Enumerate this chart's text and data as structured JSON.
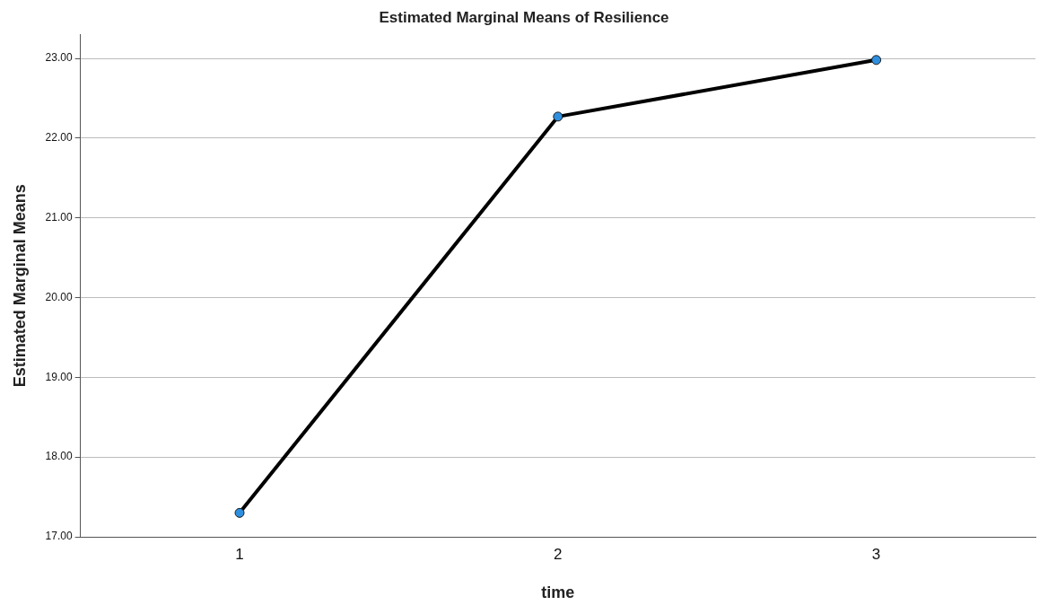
{
  "chart_data": {
    "type": "line",
    "title": "Estimated Marginal Means of Resilience",
    "xlabel": "time",
    "ylabel": "Estimated Marginal Means",
    "categories": [
      "1",
      "2",
      "3"
    ],
    "series": [
      {
        "color": "#000000",
        "values": [
          17.3,
          22.27,
          22.98
        ]
      }
    ],
    "ylim": [
      17,
      23.3
    ],
    "yticks": [
      {
        "value": 17,
        "label": "17.00"
      },
      {
        "value": 18,
        "label": "18.00"
      },
      {
        "value": 19,
        "label": "19.00"
      },
      {
        "value": 20,
        "label": "20.00"
      },
      {
        "value": 21,
        "label": "21.00"
      },
      {
        "value": 22,
        "label": "22.00"
      },
      {
        "value": 23,
        "label": "23.00"
      }
    ],
    "grid": "y",
    "legend": false,
    "marker": "circle",
    "line_style": "solid"
  }
}
